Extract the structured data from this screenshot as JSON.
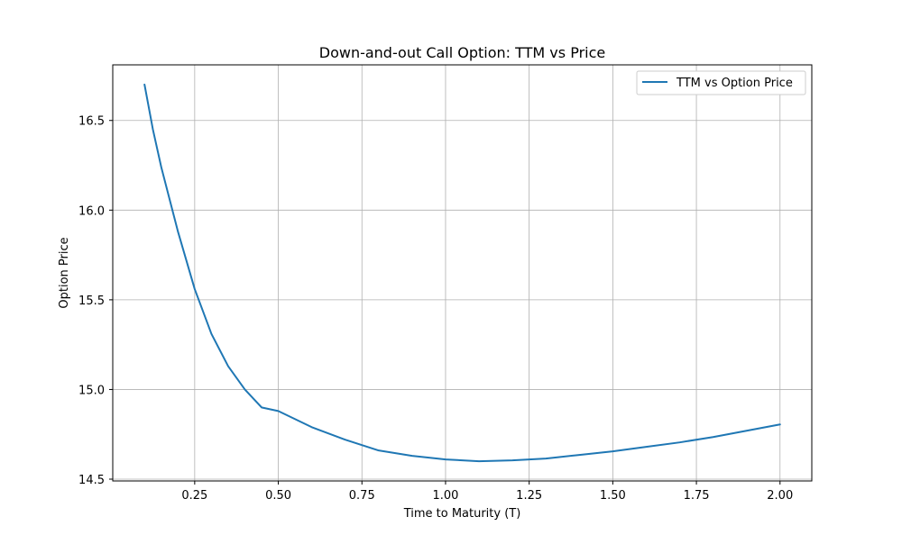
{
  "chart_data": {
    "type": "line",
    "title": "Down-and-out Call Option: TTM vs Price",
    "xlabel": "Time to Maturity (T)",
    "ylabel": "Option Price",
    "xlim": [
      0.005,
      2.095
    ],
    "ylim": [
      14.49,
      16.81
    ],
    "x_ticks": [
      0.25,
      0.5,
      0.75,
      1.0,
      1.25,
      1.5,
      1.75,
      2.0
    ],
    "x_tick_labels": [
      "0.25",
      "0.50",
      "0.75",
      "1.00",
      "1.25",
      "1.50",
      "1.75",
      "2.00"
    ],
    "y_ticks": [
      14.5,
      15.0,
      15.5,
      16.0,
      16.5
    ],
    "y_tick_labels": [
      "14.5",
      "15.0",
      "15.5",
      "16.0",
      "16.5"
    ],
    "grid": true,
    "legend_position": "top-right",
    "series": [
      {
        "name": "TTM vs Option Price",
        "color": "#1f77b4",
        "x": [
          0.1,
          0.125,
          0.15,
          0.175,
          0.2,
          0.25,
          0.3,
          0.35,
          0.4,
          0.45,
          0.5,
          0.6,
          0.7,
          0.8,
          0.9,
          1.0,
          1.1,
          1.2,
          1.3,
          1.4,
          1.5,
          1.6,
          1.7,
          1.8,
          1.9,
          2.0
        ],
        "y": [
          16.7,
          16.45,
          16.24,
          16.06,
          15.88,
          15.56,
          15.31,
          15.13,
          15.0,
          14.9,
          14.88,
          14.79,
          14.72,
          14.66,
          14.63,
          14.61,
          14.6,
          14.605,
          14.615,
          14.635,
          14.655,
          14.68,
          14.705,
          14.735,
          14.77,
          14.805
        ]
      }
    ]
  }
}
